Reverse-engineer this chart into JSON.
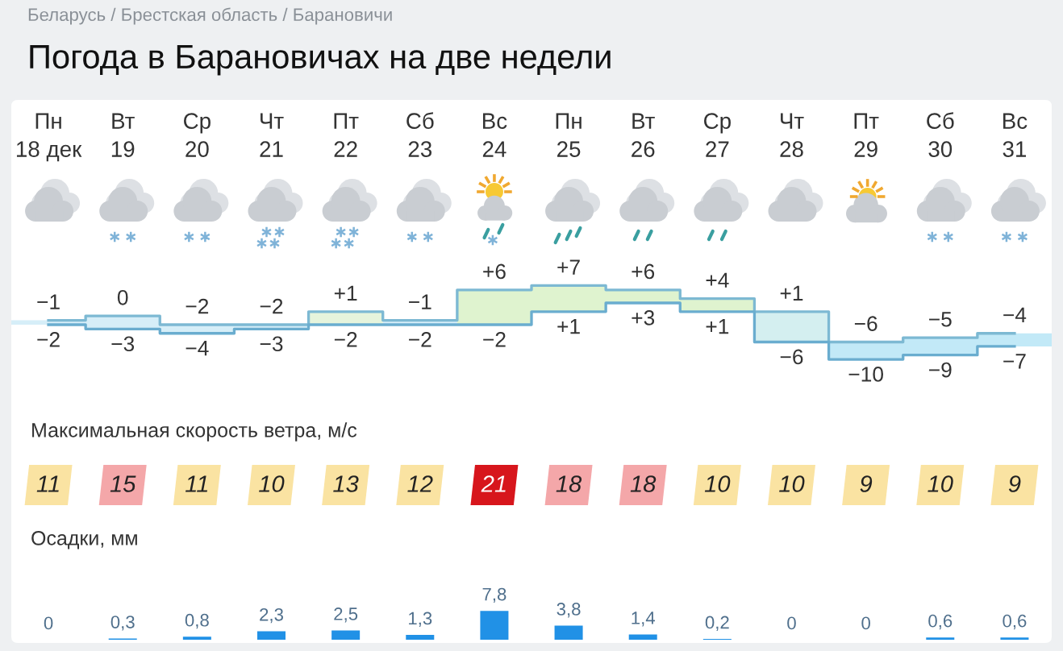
{
  "chart_data": [
    {
      "type": "step",
      "title": "Погода в Барановичах на две недели",
      "annotations": [
        "Беларусь / Брестская область / Барановичи"
      ],
      "tick_labels": "x",
      "categories": [
        "Пн\n18 дек",
        "Вт\n19",
        "Ср\n20",
        "Чт\n21",
        "Пт\n22",
        "Сб\n23",
        "Вс\n24",
        "Пн\n25",
        "Вт\n26",
        "Ср\n27",
        "Чт\n28",
        "Пт\n29",
        "Сб\n30",
        "Вс\n31"
      ],
      "series": [
        {
          "color": "#7db9d3",
          "colors": [
            "#d6eef8",
            "#d6eef8",
            "#d6eef8",
            "#d6eef8",
            "#e6f4dc",
            "#d6eef8",
            "#dff3cf",
            "#dff3cf",
            "#dff3cf",
            "#dff3cf",
            "#d4eff0",
            "#c2e9f7",
            "#c2e9f7",
            "#c2e9f7"
          ],
          "values": [
            -1,
            0,
            -2,
            -2,
            1,
            -1,
            6,
            7,
            6,
            4,
            1,
            -6,
            -5,
            -4
          ],
          "value_labels": [
            "−1",
            "0",
            "−2",
            "−2",
            "+1",
            "−1",
            "+6",
            "+7",
            "+6",
            "+4",
            "+1",
            "−6",
            "−5",
            "−4"
          ]
        },
        {
          "color": "#6aadcf",
          "values": [
            -2,
            -3,
            -4,
            -3,
            -2,
            -2,
            -2,
            1,
            3,
            1,
            -6,
            -10,
            -9,
            -7
          ],
          "value_labels": [
            "−2",
            "−3",
            "−4",
            "−3",
            "−2",
            "−2",
            "−2",
            "+1",
            "+3",
            "+1",
            "−6",
            "−10",
            "−9",
            "−7"
          ]
        }
      ]
    },
    {
      "type": "heatmap",
      "title": "Максимальная скорость ветра, м/с",
      "data_labels": true,
      "categories": [
        null,
        null,
        null,
        null,
        null,
        null,
        null,
        null,
        null,
        null,
        null,
        null,
        null,
        null
      ],
      "y_categories": [
        null
      ],
      "cells": [
        [
          11,
          15,
          11,
          10,
          13,
          12,
          21,
          18,
          18,
          10,
          10,
          9,
          10,
          9
        ]
      ]
    },
    {
      "type": "bar",
      "title": "Осадки, мм",
      "categories": [
        null,
        null,
        null,
        null,
        null,
        null,
        null,
        null,
        null,
        null,
        null,
        null,
        null,
        null
      ],
      "values": [
        0,
        0.3,
        0.8,
        2.3,
        2.5,
        1.3,
        7.8,
        3.8,
        1.4,
        0.2,
        0,
        0,
        0.6,
        0.6
      ],
      "color": "#2191e6",
      "value_labels": [
        "0",
        "0,3",
        "0,8",
        "2,3",
        "2,5",
        "1,3",
        "7,8",
        "3,8",
        "1,4",
        "0,2",
        "0",
        "0",
        "0,6",
        "0,6"
      ]
    }
  ]
}
